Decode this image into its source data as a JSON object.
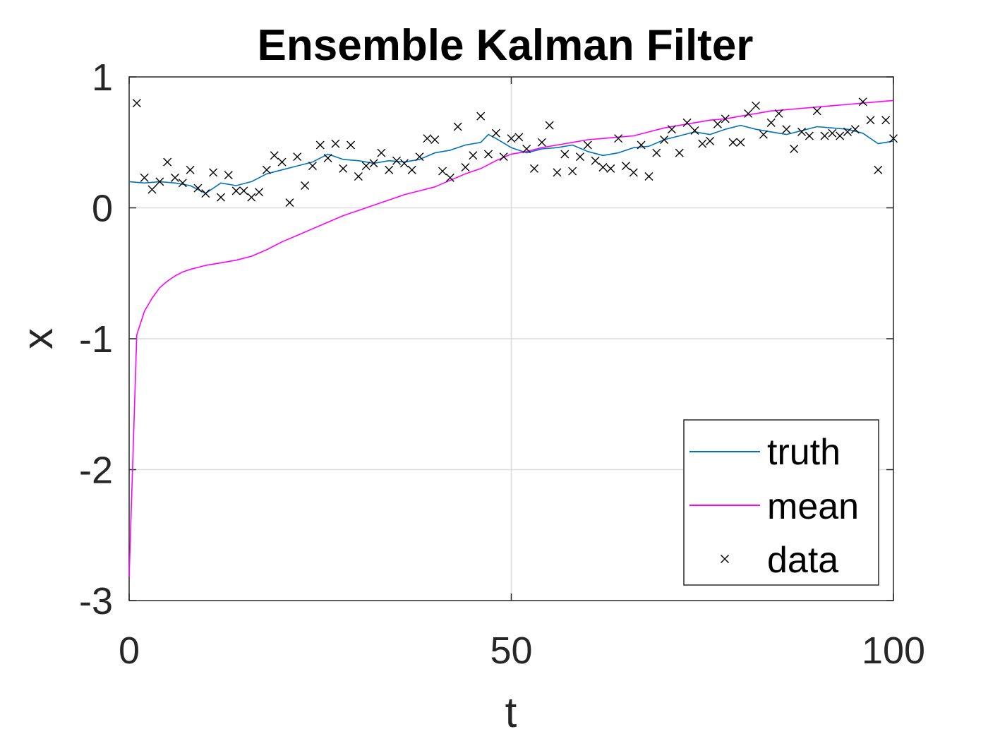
{
  "chart_data": {
    "type": "line",
    "title": "Ensemble Kalman Filter",
    "xlabel": "t",
    "ylabel": "x",
    "xlim": [
      0,
      100
    ],
    "ylim": [
      -3,
      1
    ],
    "xticks": [
      0,
      50,
      100
    ],
    "yticks": [
      1,
      0,
      -1,
      -2,
      -3
    ],
    "grid": true,
    "legend_position": "bottom-right",
    "series": [
      {
        "name": "truth",
        "style": "line",
        "color": "#0072BD",
        "x": [
          0,
          2,
          4,
          6,
          8,
          10,
          12,
          14,
          16,
          18,
          20,
          22,
          24,
          26,
          28,
          30,
          32,
          34,
          36,
          38,
          40,
          42,
          44,
          46,
          47,
          48,
          50,
          52,
          54,
          56,
          58,
          60,
          62,
          64,
          66,
          68,
          70,
          72,
          74,
          76,
          78,
          80,
          82,
          84,
          86,
          88,
          90,
          92,
          94,
          96,
          98,
          100
        ],
        "y": [
          0.2,
          0.19,
          0.2,
          0.19,
          0.17,
          0.11,
          0.19,
          0.17,
          0.2,
          0.26,
          0.29,
          0.32,
          0.35,
          0.41,
          0.37,
          0.36,
          0.34,
          0.36,
          0.35,
          0.37,
          0.42,
          0.44,
          0.48,
          0.5,
          0.56,
          0.53,
          0.46,
          0.42,
          0.45,
          0.46,
          0.48,
          0.43,
          0.4,
          0.42,
          0.46,
          0.47,
          0.52,
          0.55,
          0.58,
          0.56,
          0.6,
          0.63,
          0.6,
          0.58,
          0.56,
          0.59,
          0.62,
          0.61,
          0.6,
          0.57,
          0.49,
          0.51
        ]
      },
      {
        "name": "mean",
        "style": "line",
        "color": "#FF00FF",
        "x": [
          0,
          1,
          2,
          3,
          4,
          5,
          6,
          7,
          8,
          10,
          12,
          14,
          16,
          18,
          20,
          22,
          24,
          26,
          28,
          30,
          32,
          34,
          36,
          38,
          40,
          42,
          44,
          46,
          48,
          50,
          52,
          54,
          56,
          58,
          60,
          62,
          64,
          66,
          68,
          70,
          72,
          74,
          76,
          78,
          80,
          82,
          84,
          86,
          88,
          90,
          92,
          94,
          96,
          98,
          100
        ],
        "y": [
          -2.82,
          -0.97,
          -0.79,
          -0.69,
          -0.61,
          -0.56,
          -0.52,
          -0.49,
          -0.47,
          -0.44,
          -0.42,
          -0.4,
          -0.37,
          -0.32,
          -0.26,
          -0.21,
          -0.16,
          -0.11,
          -0.06,
          -0.02,
          0.02,
          0.06,
          0.1,
          0.13,
          0.16,
          0.21,
          0.26,
          0.3,
          0.36,
          0.41,
          0.43,
          0.46,
          0.48,
          0.5,
          0.52,
          0.53,
          0.54,
          0.55,
          0.58,
          0.61,
          0.63,
          0.65,
          0.67,
          0.68,
          0.7,
          0.72,
          0.74,
          0.75,
          0.76,
          0.77,
          0.78,
          0.79,
          0.8,
          0.81,
          0.82
        ]
      },
      {
        "name": "data",
        "style": "marker",
        "marker": "x",
        "color": "#000000",
        "x": [
          1,
          2,
          3,
          4,
          5,
          6,
          7,
          8,
          9,
          10,
          11,
          12,
          13,
          14,
          15,
          16,
          17,
          18,
          19,
          20,
          21,
          22,
          23,
          24,
          25,
          26,
          27,
          28,
          29,
          30,
          31,
          32,
          33,
          34,
          35,
          36,
          37,
          38,
          39,
          40,
          41,
          42,
          43,
          44,
          45,
          46,
          47,
          48,
          49,
          50,
          51,
          52,
          53,
          54,
          55,
          56,
          57,
          58,
          59,
          60,
          61,
          62,
          63,
          64,
          65,
          66,
          67,
          68,
          69,
          70,
          71,
          72,
          73,
          74,
          75,
          76,
          77,
          78,
          79,
          80,
          81,
          82,
          83,
          84,
          85,
          86,
          87,
          88,
          89,
          90,
          91,
          92,
          93,
          94,
          95,
          96,
          97,
          98,
          99,
          100
        ],
        "y": [
          0.8,
          0.23,
          0.14,
          0.2,
          0.35,
          0.23,
          0.19,
          0.29,
          0.15,
          0.11,
          0.27,
          0.08,
          0.25,
          0.13,
          0.13,
          0.08,
          0.12,
          0.29,
          0.4,
          0.35,
          0.04,
          0.39,
          0.17,
          0.32,
          0.48,
          0.38,
          0.49,
          0.3,
          0.48,
          0.24,
          0.32,
          0.34,
          0.42,
          0.29,
          0.36,
          0.34,
          0.29,
          0.39,
          0.53,
          0.52,
          0.28,
          0.23,
          0.62,
          0.31,
          0.4,
          0.7,
          0.41,
          0.57,
          0.39,
          0.53,
          0.54,
          0.45,
          0.3,
          0.5,
          0.63,
          0.27,
          0.41,
          0.28,
          0.39,
          0.48,
          0.36,
          0.31,
          0.3,
          0.53,
          0.32,
          0.27,
          0.48,
          0.24,
          0.42,
          0.52,
          0.6,
          0.42,
          0.65,
          0.59,
          0.49,
          0.51,
          0.64,
          0.68,
          0.5,
          0.5,
          0.72,
          0.78,
          0.56,
          0.65,
          0.72,
          0.6,
          0.45,
          0.58,
          0.55,
          0.74,
          0.55,
          0.57,
          0.55,
          0.58,
          0.6,
          0.81,
          0.67,
          0.29,
          0.67,
          0.53
        ]
      }
    ]
  }
}
